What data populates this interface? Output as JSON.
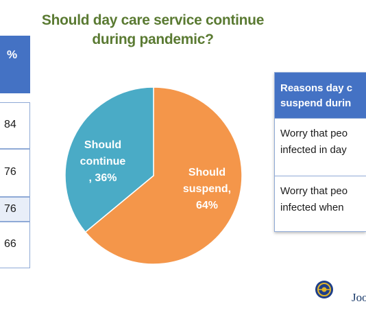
{
  "title": "Should day care service continue\nduring pandemic?",
  "left_table": {
    "header": "%",
    "values": [
      "84",
      "76",
      "76",
      "66"
    ]
  },
  "right_table": {
    "header": "Reasons day c\nsuspend durin",
    "rows": [
      "Worry that peo\ninfected in day",
      "Worry that peo\ninfected when"
    ]
  },
  "logo_text": "Joo",
  "colors": {
    "suspend": "#f4964a",
    "continue": "#4aabc6",
    "title": "#5a7a32",
    "table_header": "#4472c4"
  },
  "chart_data": {
    "type": "pie",
    "title": "Should day care service continue during pandemic?",
    "slices": [
      {
        "label": "Should suspend",
        "value": 64,
        "display": [
          "Should",
          "suspend,",
          "64%"
        ]
      },
      {
        "label": "Should continue",
        "value": 36,
        "display": [
          "Should",
          "continue",
          ", 36%"
        ]
      }
    ]
  }
}
